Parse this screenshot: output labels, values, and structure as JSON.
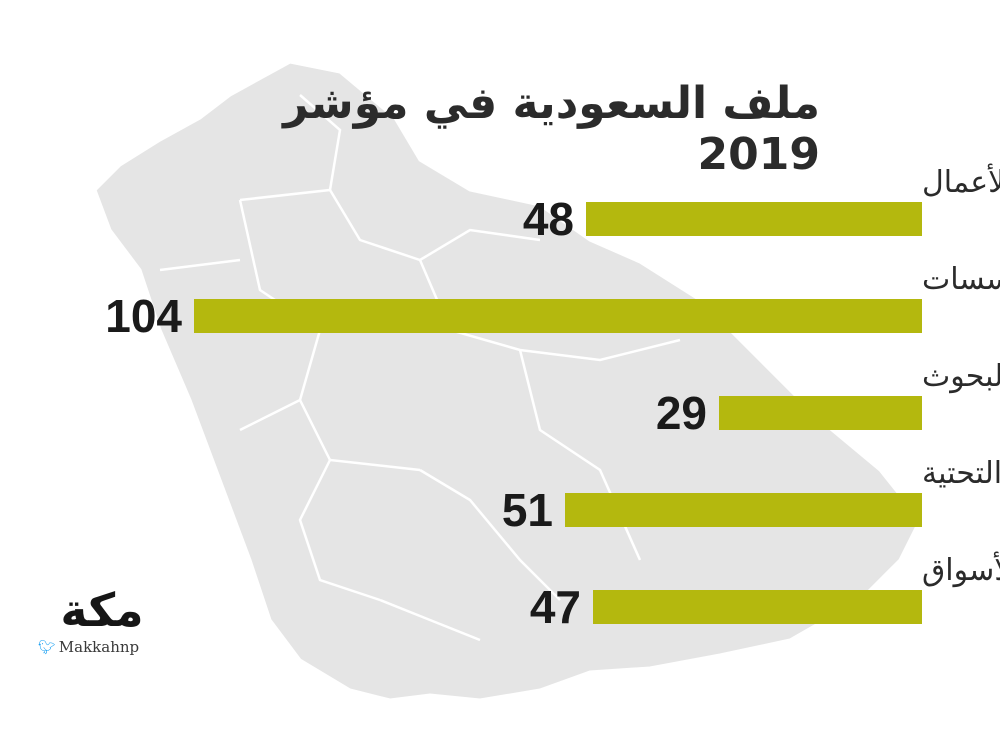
{
  "chart_data": {
    "type": "bar",
    "orientation": "horizontal",
    "title": "ملف السعودية في مؤشر 2019",
    "categories": [
      "تطور بيئة الأعمال",
      "المؤسسات",
      "رأس المال البشري والبحوث",
      "البنية التحتية",
      "تطور الأسواق"
    ],
    "values": [
      48,
      104,
      29,
      51,
      47
    ],
    "bar_color": "#b4b80e",
    "value_color": "#1a1a1a",
    "label_color": "#2b2b2b"
  },
  "logo": {
    "word": "مكة",
    "handle": "Makkahnp",
    "twitter_icon": "twitter-bird-icon"
  },
  "colors": {
    "map_fill": "#e6e6e6",
    "map_border": "#ffffff"
  }
}
